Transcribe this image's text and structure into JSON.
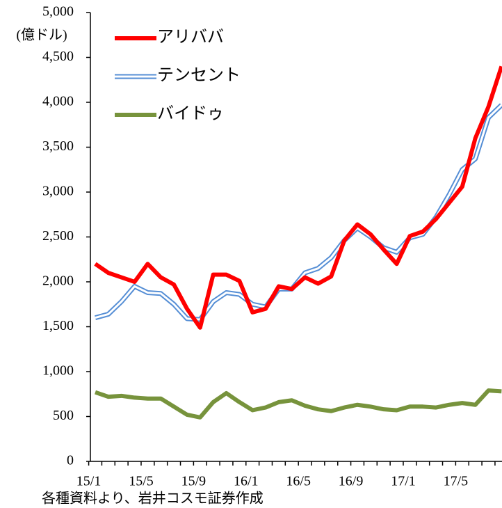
{
  "chart_data": {
    "type": "line",
    "y_unit": "(億ドル)",
    "source": "各種資料より、岩井コスモ証券作成",
    "categories": [
      "15/1",
      null,
      null,
      null,
      "15/5",
      null,
      null,
      null,
      "15/9",
      null,
      null,
      null,
      "16/1",
      null,
      null,
      null,
      "16/5",
      null,
      null,
      null,
      "16/9",
      null,
      null,
      null,
      "17/1",
      null,
      null,
      null,
      "17/5",
      null,
      null,
      null
    ],
    "series": [
      {
        "name": "アリババ",
        "color": "#ff0000",
        "values": [
          2200,
          2100,
          2050,
          2000,
          2200,
          2050,
          1970,
          1700,
          1490,
          2080,
          2080,
          2010,
          1660,
          1700,
          1950,
          1920,
          2050,
          1980,
          2060,
          2460,
          2640,
          2530,
          2360,
          2200,
          2510,
          2560,
          2700,
          2880,
          3060,
          3600,
          3950,
          4400
        ]
      },
      {
        "name": "テンセント",
        "color": "#558ed5",
        "values": [
          1600,
          1640,
          1780,
          1950,
          1880,
          1870,
          1750,
          1590,
          1580,
          1780,
          1880,
          1860,
          1750,
          1720,
          1920,
          1920,
          2100,
          2150,
          2270,
          2460,
          2600,
          2500,
          2380,
          2330,
          2490,
          2530,
          2720,
          2970,
          3250,
          3370,
          3830,
          3970
        ]
      },
      {
        "name": "バイドゥ",
        "color": "#77933c",
        "values": [
          770,
          720,
          730,
          710,
          700,
          700,
          610,
          520,
          490,
          660,
          760,
          660,
          570,
          600,
          660,
          680,
          620,
          580,
          560,
          600,
          630,
          610,
          580,
          570,
          610,
          610,
          600,
          630,
          650,
          630,
          790,
          780
        ]
      }
    ],
    "ylim": [
      0,
      5000
    ],
    "yticks": [
      0,
      500,
      {
        "value": 1000,
        "label": "1,000"
      },
      {
        "value": 1500,
        "label": "1,500"
      },
      {
        "value": 2000,
        "label": "2,000"
      },
      {
        "value": 2500,
        "label": "2,500"
      },
      {
        "value": 3000,
        "label": "3,000"
      },
      {
        "value": 3500,
        "label": "3,500"
      },
      {
        "value": 4000,
        "label": "4,000"
      },
      {
        "value": 4500,
        "label": "4,500"
      },
      {
        "value": 5000,
        "label": "5,000"
      }
    ],
    "legend": "upper-left"
  }
}
